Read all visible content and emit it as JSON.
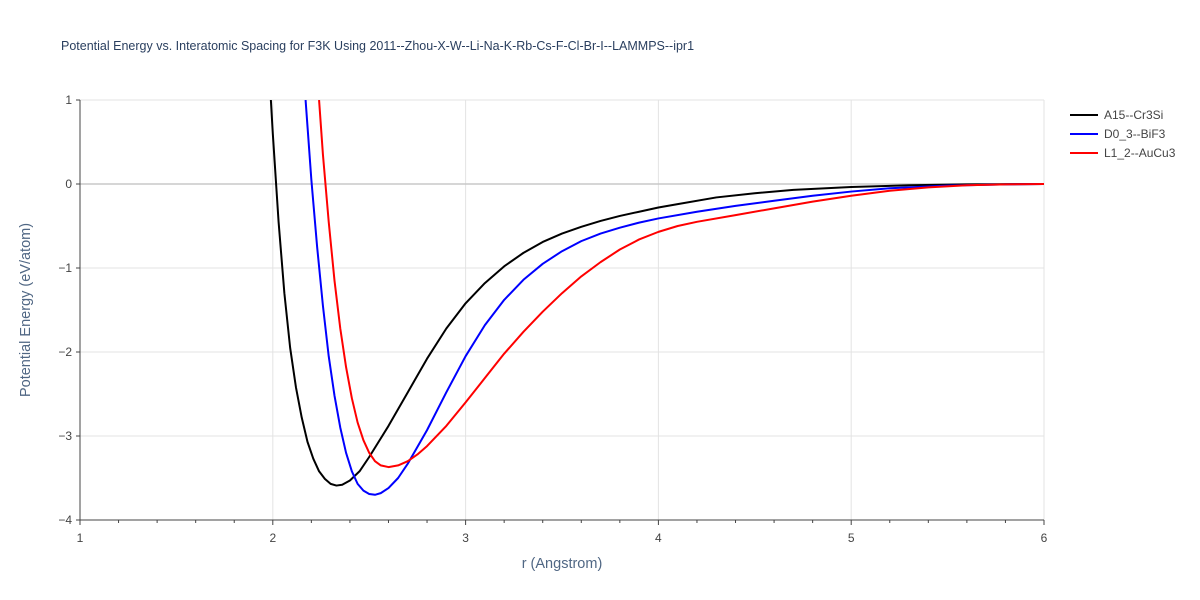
{
  "chart_data": {
    "type": "line",
    "title": "Potential Energy vs. Interatomic Spacing for F3K Using 2011--Zhou-X-W--Li-Na-K-Rb-Cs-F-Cl-Br-I--LAMMPS--ipr1",
    "xlabel": "r (Angstrom)",
    "ylabel": "Potential Energy (eV/atom)",
    "xlim": [
      1,
      6
    ],
    "ylim": [
      -4,
      1
    ],
    "xticks": [
      1,
      2,
      3,
      4,
      5,
      6
    ],
    "yticks": [
      1,
      0,
      -1,
      -2,
      -3,
      -4
    ],
    "ytick_labels": [
      "1",
      "0",
      "−1",
      "−2",
      "−3",
      "−4"
    ],
    "grid": true,
    "legend_position": "top-right",
    "series": [
      {
        "name": "A15--Cr3Si",
        "color": "#000000",
        "x": [
          1.99,
          2.0,
          2.03,
          2.06,
          2.09,
          2.12,
          2.15,
          2.18,
          2.21,
          2.24,
          2.27,
          2.3,
          2.33,
          2.36,
          2.4,
          2.45,
          2.5,
          2.6,
          2.7,
          2.8,
          2.9,
          3.0,
          3.1,
          3.2,
          3.3,
          3.4,
          3.5,
          3.6,
          3.7,
          3.8,
          3.9,
          4.0,
          4.1,
          4.3,
          4.5,
          4.7,
          5.0,
          5.3,
          5.6,
          6.0
        ],
        "y": [
          1.0,
          0.6,
          -0.45,
          -1.3,
          -1.95,
          -2.42,
          -2.78,
          -3.07,
          -3.27,
          -3.42,
          -3.51,
          -3.57,
          -3.59,
          -3.58,
          -3.53,
          -3.42,
          -3.25,
          -2.88,
          -2.48,
          -2.08,
          -1.72,
          -1.42,
          -1.18,
          -0.98,
          -0.82,
          -0.69,
          -0.59,
          -0.51,
          -0.44,
          -0.38,
          -0.33,
          -0.28,
          -0.24,
          -0.16,
          -0.11,
          -0.07,
          -0.035,
          -0.015,
          -0.005,
          0.0
        ]
      },
      {
        "name": "D0_3--BiF3",
        "color": "#0000ff",
        "x": [
          2.17,
          2.2,
          2.23,
          2.26,
          2.29,
          2.32,
          2.35,
          2.38,
          2.41,
          2.44,
          2.47,
          2.5,
          2.53,
          2.56,
          2.6,
          2.65,
          2.7,
          2.8,
          2.9,
          3.0,
          3.1,
          3.2,
          3.3,
          3.4,
          3.5,
          3.6,
          3.7,
          3.8,
          3.9,
          4.0,
          4.2,
          4.4,
          4.6,
          4.8,
          5.0,
          5.2,
          5.5,
          5.8,
          6.0
        ],
        "y": [
          1.0,
          0.05,
          -0.75,
          -1.45,
          -2.05,
          -2.52,
          -2.9,
          -3.2,
          -3.42,
          -3.57,
          -3.65,
          -3.69,
          -3.7,
          -3.68,
          -3.62,
          -3.5,
          -3.33,
          -2.93,
          -2.48,
          -2.05,
          -1.68,
          -1.38,
          -1.14,
          -0.95,
          -0.8,
          -0.68,
          -0.59,
          -0.52,
          -0.46,
          -0.41,
          -0.33,
          -0.26,
          -0.2,
          -0.14,
          -0.09,
          -0.05,
          -0.02,
          -0.005,
          0.0
        ]
      },
      {
        "name": "L1_2--AuCu3",
        "color": "#ff0000",
        "x": [
          2.24,
          2.26,
          2.29,
          2.32,
          2.35,
          2.38,
          2.41,
          2.44,
          2.47,
          2.5,
          2.53,
          2.56,
          2.6,
          2.65,
          2.7,
          2.75,
          2.8,
          2.9,
          3.0,
          3.1,
          3.2,
          3.3,
          3.4,
          3.5,
          3.6,
          3.7,
          3.8,
          3.9,
          4.0,
          4.1,
          4.2,
          4.4,
          4.6,
          4.8,
          5.0,
          5.2,
          5.4,
          5.6,
          5.8,
          6.0
        ],
        "y": [
          1.0,
          0.35,
          -0.45,
          -1.15,
          -1.72,
          -2.18,
          -2.55,
          -2.84,
          -3.05,
          -3.2,
          -3.3,
          -3.35,
          -3.37,
          -3.35,
          -3.3,
          -3.22,
          -3.12,
          -2.88,
          -2.6,
          -2.31,
          -2.02,
          -1.76,
          -1.52,
          -1.3,
          -1.1,
          -0.93,
          -0.78,
          -0.66,
          -0.57,
          -0.5,
          -0.45,
          -0.37,
          -0.29,
          -0.21,
          -0.14,
          -0.08,
          -0.04,
          -0.015,
          -0.005,
          0.0
        ]
      }
    ]
  }
}
